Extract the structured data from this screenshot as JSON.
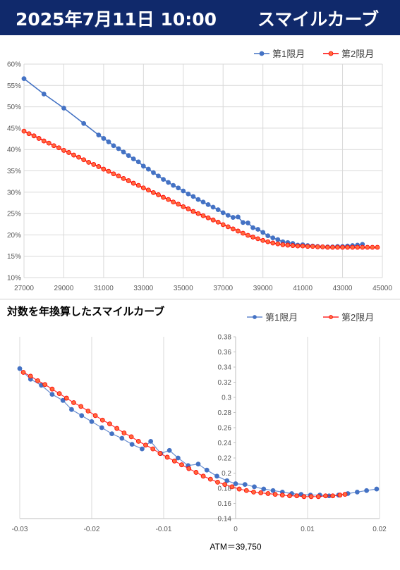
{
  "header": {
    "date_text": "2025年7月11日 10:00",
    "title_text": "スマイルカーブ"
  },
  "colors": {
    "header_bg": "#10296b",
    "series1": "#4472c4",
    "series2": "#ff0000",
    "series2_fill": "#ff6a3d",
    "grid": "#d9d9d9"
  },
  "chart_data": [
    {
      "type": "line",
      "legend_position": "top-right",
      "grid": true,
      "xlim": [
        27000,
        45000
      ],
      "ylim": [
        10,
        60
      ],
      "x_ticks": [
        27000,
        29000,
        31000,
        33000,
        35000,
        37000,
        39000,
        41000,
        43000,
        45000
      ],
      "x_tick_labels": [
        "27000",
        "29000",
        "31000",
        "33000",
        "35000",
        "37000",
        "39000",
        "41000",
        "43000",
        "45000"
      ],
      "y_ticks": [
        10,
        15,
        20,
        25,
        30,
        35,
        40,
        45,
        50,
        55,
        60
      ],
      "y_tick_labels": [
        "10%",
        "15%",
        "20%",
        "25%",
        "30%",
        "35%",
        "40%",
        "45%",
        "50%",
        "55%",
        "60%"
      ],
      "series": [
        {
          "name": "第1限月",
          "x": [
            27000,
            28000,
            29000,
            30000,
            30750,
            31000,
            31250,
            31500,
            31750,
            32000,
            32250,
            32500,
            32750,
            33000,
            33250,
            33500,
            33750,
            34000,
            34250,
            34500,
            34750,
            35000,
            35250,
            35500,
            35750,
            36000,
            36250,
            36500,
            36750,
            37000,
            37250,
            37500,
            37750,
            38000,
            38250,
            38500,
            38750,
            39000,
            39250,
            39500,
            39750,
            40000,
            40250,
            40500,
            40750,
            41000,
            41250,
            41500,
            41750,
            42000,
            42250,
            42500,
            42750,
            43000,
            43250,
            43500,
            43750,
            44000
          ],
          "y": [
            56.6,
            53.0,
            49.7,
            46.1,
            43.4,
            42.6,
            41.8,
            40.9,
            40.2,
            39.4,
            38.6,
            37.8,
            37.1,
            36.1,
            35.4,
            34.6,
            33.8,
            33.0,
            32.3,
            31.6,
            31.0,
            30.3,
            29.6,
            29.0,
            28.3,
            27.7,
            27.1,
            26.5,
            25.9,
            25.2,
            24.6,
            24.1,
            24.2,
            22.9,
            22.8,
            21.7,
            21.3,
            20.6,
            19.8,
            19.3,
            18.9,
            18.4,
            18.2,
            18.0,
            17.6,
            17.7,
            17.5,
            17.4,
            17.3,
            17.2,
            17.2,
            17.2,
            17.3,
            17.3,
            17.4,
            17.5,
            17.6,
            17.8
          ]
        },
        {
          "name": "第2限月",
          "x": [
            27000,
            27250,
            27500,
            27750,
            28000,
            28250,
            28500,
            28750,
            29000,
            29250,
            29500,
            29750,
            30000,
            30250,
            30500,
            30750,
            31000,
            31250,
            31500,
            31750,
            32000,
            32250,
            32500,
            32750,
            33000,
            33250,
            33500,
            33750,
            34000,
            34250,
            34500,
            34750,
            35000,
            35250,
            35500,
            35750,
            36000,
            36250,
            36500,
            36750,
            37000,
            37250,
            37500,
            37750,
            38000,
            38250,
            38500,
            38750,
            39000,
            39250,
            39500,
            39750,
            40000,
            40250,
            40500,
            40750,
            41000,
            41250,
            41500,
            41750,
            42000,
            42250,
            42500,
            42750,
            43000,
            43250,
            43500,
            43750,
            44000,
            44250,
            44500,
            44750
          ],
          "y": [
            44.3,
            43.7,
            43.2,
            42.6,
            42.0,
            41.5,
            40.9,
            40.4,
            39.8,
            39.3,
            38.7,
            38.2,
            37.6,
            37.0,
            36.5,
            36.0,
            35.4,
            34.9,
            34.3,
            33.8,
            33.2,
            32.7,
            32.1,
            31.6,
            31.0,
            30.5,
            29.9,
            29.4,
            28.8,
            28.3,
            27.7,
            27.2,
            26.6,
            26.1,
            25.5,
            25.0,
            24.5,
            24.0,
            23.5,
            23.0,
            22.4,
            21.9,
            21.4,
            20.9,
            20.4,
            19.9,
            19.5,
            19.1,
            18.7,
            18.4,
            18.1,
            17.9,
            17.7,
            17.6,
            17.5,
            17.4,
            17.4,
            17.3,
            17.3,
            17.2,
            17.2,
            17.1,
            17.1,
            17.1,
            17.1,
            17.1,
            17.1,
            17.1,
            17.1,
            17.1,
            17.1,
            17.1
          ]
        }
      ]
    },
    {
      "type": "scatter",
      "title": "対数を年換算したスマイルカーブ",
      "legend_position": "top-right",
      "grid": true,
      "xlim": [
        -0.03,
        0.02
      ],
      "ylim": [
        0.14,
        0.38
      ],
      "x_ticks": [
        -0.03,
        -0.02,
        -0.01,
        0,
        0.01,
        0.02
      ],
      "x_tick_labels": [
        "-0.03",
        "-0.02",
        "-0.01",
        "0",
        "0.01",
        "0.02"
      ],
      "y_ticks": [
        0.14,
        0.16,
        0.18,
        0.2,
        0.22,
        0.24,
        0.26,
        0.28,
        0.3,
        0.32,
        0.34,
        0.36,
        0.38
      ],
      "y_tick_labels": [
        "0.14",
        "0.16",
        "0.18",
        "0.2",
        "0.22",
        "0.24",
        "0.26",
        "0.28",
        "0.3",
        "0.32",
        "0.34",
        "0.36",
        "0.38"
      ],
      "annotation": "ATM＝39,750",
      "series": [
        {
          "name": "第1限月",
          "x": [
            -0.03,
            -0.0285,
            -0.027,
            -0.0255,
            -0.024,
            -0.0228,
            -0.0214,
            -0.02,
            -0.0186,
            -0.0172,
            -0.0158,
            -0.0144,
            -0.013,
            -0.0118,
            -0.0104,
            -0.0092,
            -0.008,
            -0.0066,
            -0.0052,
            -0.004,
            -0.0026,
            -0.0012,
            0.0,
            0.0013,
            0.0026,
            0.0039,
            0.0052,
            0.0065,
            0.0078,
            0.0091,
            0.0104,
            0.0117,
            0.013,
            0.0143,
            0.0156,
            0.0169,
            0.0182,
            0.0196
          ],
          "y": [
            0.338,
            0.324,
            0.316,
            0.304,
            0.296,
            0.284,
            0.276,
            0.268,
            0.26,
            0.252,
            0.246,
            0.238,
            0.232,
            0.242,
            0.226,
            0.23,
            0.22,
            0.21,
            0.212,
            0.204,
            0.196,
            0.19,
            0.186,
            0.185,
            0.182,
            0.179,
            0.177,
            0.175,
            0.173,
            0.172,
            0.171,
            0.171,
            0.17,
            0.171,
            0.173,
            0.175,
            0.177,
            0.179
          ]
        },
        {
          "name": "第2限月",
          "x": [
            -0.0295,
            -0.0285,
            -0.0275,
            -0.0265,
            -0.0255,
            -0.0245,
            -0.0235,
            -0.0225,
            -0.0215,
            -0.0205,
            -0.0195,
            -0.0185,
            -0.0175,
            -0.0165,
            -0.0155,
            -0.0145,
            -0.0135,
            -0.0125,
            -0.0115,
            -0.0105,
            -0.0095,
            -0.0085,
            -0.0075,
            -0.0065,
            -0.0055,
            -0.0045,
            -0.0035,
            -0.0025,
            -0.0015,
            -0.0005,
            0.0005,
            0.0015,
            0.0025,
            0.0035,
            0.0045,
            0.0055,
            0.0065,
            0.0075,
            0.0085,
            0.0095,
            0.0105,
            0.0115,
            0.0125,
            0.0135,
            0.0145,
            0.0152
          ],
          "y": [
            0.333,
            0.328,
            0.322,
            0.317,
            0.311,
            0.305,
            0.299,
            0.293,
            0.288,
            0.282,
            0.276,
            0.27,
            0.265,
            0.259,
            0.253,
            0.248,
            0.242,
            0.237,
            0.232,
            0.226,
            0.221,
            0.216,
            0.211,
            0.206,
            0.201,
            0.196,
            0.192,
            0.188,
            0.185,
            0.182,
            0.179,
            0.177,
            0.175,
            0.174,
            0.173,
            0.172,
            0.171,
            0.17,
            0.17,
            0.169,
            0.169,
            0.169,
            0.17,
            0.17,
            0.171,
            0.172
          ]
        }
      ]
    }
  ]
}
